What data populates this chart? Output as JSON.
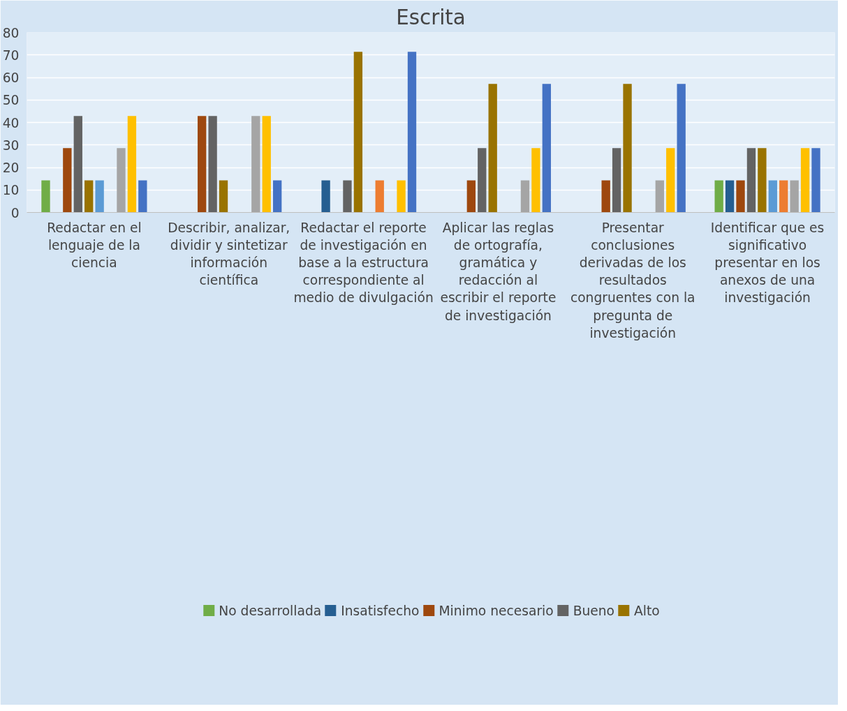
{
  "chart_data": {
    "type": "bar",
    "title": "Escrita",
    "categories": [
      "Redactar en el lenguaje de la ciencia",
      "Describir, analizar, dividir y sintetizar información científica",
      "Redactar el reporte de investigación en base a la estructura correspondiente al medio de divulgación",
      "Aplicar las reglas de ortografía, gramática y redacción al escribir el reporte de investigación",
      "Presentar conclusiones derivadas de los resultados congruentes con la pregunta de investigación",
      "Identificar que es significativo presentar en los anexos de una investigación"
    ],
    "series": [
      {
        "name": "No desarrollada",
        "color": "#70ad47",
        "values": [
          14.3,
          0,
          0,
          0,
          0,
          14.3
        ]
      },
      {
        "name": "Insatisfecho",
        "color": "#255e91",
        "values": [
          0,
          0,
          14.3,
          0,
          0,
          14.3
        ]
      },
      {
        "name": "Minimo necesario",
        "color": "#9e480e",
        "values": [
          28.6,
          42.9,
          0,
          14.3,
          14.3,
          14.3
        ]
      },
      {
        "name": "Bueno",
        "color": "#636363",
        "values": [
          42.9,
          42.9,
          14.3,
          28.6,
          28.6,
          28.6
        ]
      },
      {
        "name": "Alto",
        "color": "#997300",
        "values": [
          14.3,
          14.3,
          71.4,
          57.1,
          57.1,
          28.6
        ]
      },
      {
        "color": "#5b9bd5",
        "values": [
          14.3,
          0,
          0,
          0,
          0,
          14.3
        ]
      },
      {
        "color": "#ed7d31",
        "values": [
          0,
          0,
          14.3,
          0,
          0,
          14.3
        ]
      },
      {
        "color": "#a5a5a5",
        "values": [
          28.6,
          42.9,
          0,
          14.3,
          14.3,
          14.3
        ]
      },
      {
        "color": "#ffc000",
        "values": [
          42.9,
          42.9,
          14.3,
          28.6,
          28.6,
          28.6
        ]
      },
      {
        "color": "#4472c4",
        "values": [
          14.3,
          14.3,
          71.4,
          57.1,
          57.1,
          28.6
        ]
      }
    ],
    "ylim": [
      0,
      80
    ],
    "yticks": [
      0,
      10,
      20,
      30,
      40,
      50,
      60,
      70,
      80
    ],
    "grid": "y",
    "legend": "bottom"
  }
}
